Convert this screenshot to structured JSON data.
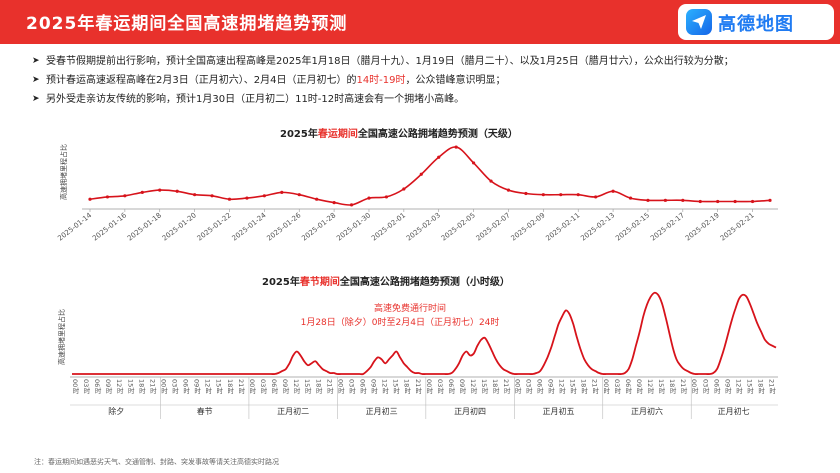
{
  "header": {
    "title": "2025年春运期间全国高速拥堵趋势预测",
    "logo_text": "高德地图",
    "logo_icon": "send-arrow-icon"
  },
  "bullets": [
    {
      "text": "受春节假期提前出行影响，预计全国高速出程高峰是2025年1月18日（腊月十九）、1月19日（腊月二十）、以及1月25日（腊月廿六），公众出行较为分散；"
    },
    {
      "pre": "预计春运高速返程高峰在2月3日（正月初六）、2月4日（正月初七）的",
      "highlight": "14时-19时",
      "post": "，公众错峰意识明显；"
    },
    {
      "text": "另外受走亲访友传统的影响，预计1月30日（正月初二）11时-12时高速会有一个拥堵小高峰。"
    }
  ],
  "colors": {
    "accent": "#e8312c",
    "line": "#d7131b"
  },
  "chart_data": [
    {
      "type": "line",
      "title_pre": "2025年",
      "title_highlight": "春运期间",
      "title_post": "全国高速公路拥堵趋势预测（天级）",
      "ylabel": "高速拥堵里程占比",
      "x": [
        "2025-01-14",
        "2025-01-15",
        "2025-01-16",
        "2025-01-17",
        "2025-01-18",
        "2025-01-19",
        "2025-01-20",
        "2025-01-21",
        "2025-01-22",
        "2025-01-23",
        "2025-01-24",
        "2025-01-25",
        "2025-01-26",
        "2025-01-27",
        "2025-01-28",
        "2025-01-29",
        "2025-01-30",
        "2025-01-31",
        "2025-02-01",
        "2025-02-02",
        "2025-02-03",
        "2025-02-04",
        "2025-02-05",
        "2025-02-06",
        "2025-02-07",
        "2025-02-08",
        "2025-02-09",
        "2025-02-10",
        "2025-02-11",
        "2025-02-12",
        "2025-02-13",
        "2025-02-14",
        "2025-02-15",
        "2025-02-16",
        "2025-02-17",
        "2025-02-18",
        "2025-02-19",
        "2025-02-20",
        "2025-02-21",
        "2025-02-22"
      ],
      "tick_labels": [
        "2025-01-14",
        "2025-01-16",
        "2025-01-18",
        "2025-01-20",
        "2025-01-22",
        "2025-01-24",
        "2025-01-26",
        "2025-01-28",
        "2025-01-30",
        "2025-02-01",
        "2025-02-03",
        "2025-02-05",
        "2025-02-07",
        "2025-02-09",
        "2025-02-11",
        "2025-02-13",
        "2025-02-15",
        "2025-02-17",
        "2025-02-19",
        "2025-02-21"
      ],
      "values": [
        6,
        8,
        9,
        12,
        14,
        13,
        10,
        9,
        6,
        7,
        9,
        12,
        10,
        6,
        3,
        1,
        7,
        8,
        15,
        28,
        43,
        52,
        38,
        22,
        14,
        11,
        10,
        10,
        10,
        8,
        13,
        7,
        5,
        5,
        5,
        4,
        4,
        4,
        4,
        5
      ],
      "ylim": [
        0,
        60
      ],
      "grid": false
    },
    {
      "type": "line",
      "title_pre": "2025年",
      "title_highlight": "春节期间",
      "title_post": "全国高速公路拥堵趋势预测（小时级）",
      "ylabel": "高速拥堵里程占比",
      "annotation": {
        "line1": "高速免费通行时间",
        "line2": "1月28日（除夕）0时至2月4日（正月初七）24时"
      },
      "hour_tick_labels": [
        "00时",
        "03时",
        "06时",
        "09时",
        "12时",
        "15时",
        "18时",
        "21时"
      ],
      "days": [
        "除夕",
        "春节",
        "正月初二",
        "正月初三",
        "正月初四",
        "正月初五",
        "正月初六",
        "正月初七"
      ],
      "values": [
        0.5,
        0.5,
        0.5,
        0.5,
        0.5,
        0.5,
        0.5,
        0.5,
        0.5,
        0.5,
        0.5,
        0.5,
        0.5,
        0.5,
        0.5,
        0.5,
        0.5,
        0.5,
        0.5,
        0.5,
        0.5,
        0.5,
        0.5,
        0.5,
        0.5,
        0.5,
        0.5,
        0.5,
        0.5,
        0.5,
        0.5,
        0.5,
        0.5,
        0.5,
        0.5,
        0.5,
        0.5,
        0.5,
        0.5,
        0.5,
        0.5,
        0.5,
        0.5,
        0.5,
        0.5,
        0.5,
        0.5,
        0.5,
        0.5,
        0.5,
        0.5,
        0.5,
        0.5,
        0.5,
        0.5,
        0.5,
        1,
        2,
        3,
        6,
        10,
        12,
        10,
        7,
        5,
        6,
        7,
        5,
        3,
        2,
        1,
        1,
        0.5,
        0.5,
        0.5,
        0.5,
        0.5,
        0.5,
        0.5,
        0.5,
        2,
        4,
        7,
        9,
        8,
        6,
        8,
        10,
        12,
        9,
        6,
        4,
        2,
        1,
        1,
        0.5,
        0.5,
        0.5,
        0.5,
        0.5,
        0.5,
        0.5,
        0.5,
        1,
        3,
        6,
        10,
        12,
        10,
        11,
        15,
        18,
        19,
        16,
        12,
        8,
        5,
        3,
        2,
        1,
        0.5,
        0.5,
        0.5,
        0.5,
        0.5,
        0.5,
        1,
        2,
        5,
        9,
        14,
        20,
        26,
        30,
        33,
        31,
        26,
        19,
        13,
        8,
        5,
        3,
        2,
        1,
        0.5,
        0.5,
        0.5,
        0.5,
        0.5,
        0.5,
        1,
        3,
        8,
        15,
        22,
        30,
        36,
        40,
        42,
        41,
        37,
        30,
        22,
        14,
        8,
        5,
        3,
        2,
        1,
        0.5,
        0.5,
        0.5,
        0.5,
        0.5,
        1,
        3,
        8,
        14,
        21,
        28,
        34,
        39,
        41,
        40,
        36,
        31,
        26,
        22,
        18,
        16,
        15,
        14
      ],
      "ylim": [
        0,
        46
      ],
      "grid": false
    }
  ],
  "footnote": "注：春运期间如遇恶劣天气、交通管制、封路、突发事故等请关注高德实时路况"
}
